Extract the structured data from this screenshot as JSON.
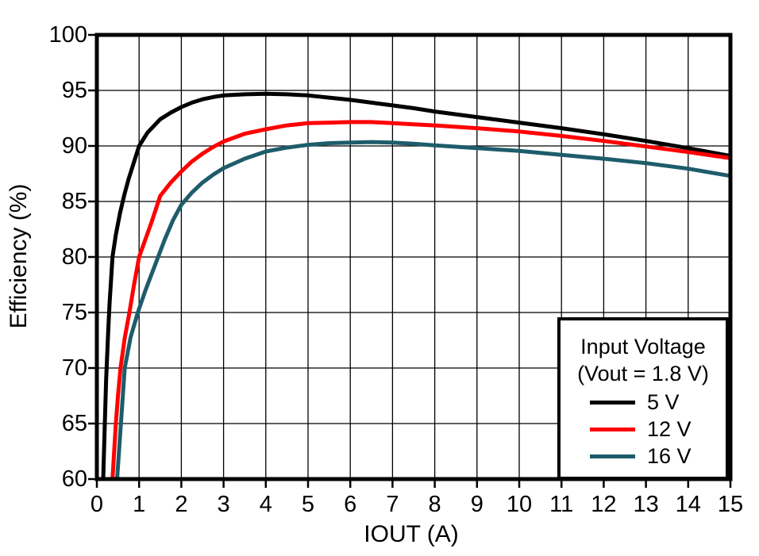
{
  "chart_data": {
    "type": "line",
    "title": "",
    "xlabel": "IOUT (A)",
    "ylabel": "Efficiency (%)",
    "xlim": [
      0,
      15
    ],
    "ylim": [
      60,
      100
    ],
    "xticks": [
      0,
      1,
      2,
      3,
      4,
      5,
      6,
      7,
      8,
      9,
      10,
      11,
      12,
      13,
      14,
      15
    ],
    "yticks": [
      60,
      65,
      70,
      75,
      80,
      85,
      90,
      95,
      100
    ],
    "grid": true,
    "colors": {
      "frame": "#000000",
      "grid": "#000000",
      "background": "#ffffff",
      "text": "#000000"
    },
    "legend": {
      "position": "bottom-right",
      "title_lines": [
        "Input Voltage",
        "(Vout = 1.8 V)"
      ]
    },
    "series": [
      {
        "name": "5 V",
        "color": "#000000",
        "points": [
          [
            0.15,
            60
          ],
          [
            0.18,
            64
          ],
          [
            0.22,
            69
          ],
          [
            0.27,
            73.5
          ],
          [
            0.3,
            75.8
          ],
          [
            0.37,
            80
          ],
          [
            0.45,
            82
          ],
          [
            0.55,
            84
          ],
          [
            0.65,
            85.6
          ],
          [
            0.75,
            87
          ],
          [
            0.85,
            88.2
          ],
          [
            1.0,
            90.0
          ],
          [
            1.2,
            91.2
          ],
          [
            1.5,
            92.4
          ],
          [
            1.75,
            93.0
          ],
          [
            2.0,
            93.5
          ],
          [
            2.25,
            93.9
          ],
          [
            2.5,
            94.2
          ],
          [
            2.75,
            94.4
          ],
          [
            3.0,
            94.55
          ],
          [
            3.5,
            94.65
          ],
          [
            4.0,
            94.7
          ],
          [
            4.5,
            94.65
          ],
          [
            5.0,
            94.55
          ],
          [
            5.5,
            94.35
          ],
          [
            6.0,
            94.15
          ],
          [
            6.5,
            93.9
          ],
          [
            7.0,
            93.65
          ],
          [
            7.5,
            93.4
          ],
          [
            8.0,
            93.1
          ],
          [
            9.0,
            92.6
          ],
          [
            10.0,
            92.1
          ],
          [
            11.0,
            91.6
          ],
          [
            12.0,
            91.05
          ],
          [
            13.0,
            90.45
          ],
          [
            14.0,
            89.8
          ],
          [
            15.0,
            89.1
          ]
        ]
      },
      {
        "name": "12 V",
        "color": "#ff0000",
        "points": [
          [
            0.37,
            60
          ],
          [
            0.41,
            62.5
          ],
          [
            0.45,
            65
          ],
          [
            0.5,
            67.5
          ],
          [
            0.56,
            70
          ],
          [
            0.66,
            72.7
          ],
          [
            0.77,
            75
          ],
          [
            0.88,
            77.5
          ],
          [
            1.0,
            80
          ],
          [
            1.16,
            81.7
          ],
          [
            1.3,
            83.2
          ],
          [
            1.5,
            85.5
          ],
          [
            1.75,
            86.7
          ],
          [
            2.0,
            87.7
          ],
          [
            2.25,
            88.6
          ],
          [
            2.5,
            89.3
          ],
          [
            2.75,
            89.9
          ],
          [
            3.0,
            90.4
          ],
          [
            3.5,
            91.1
          ],
          [
            4.0,
            91.5
          ],
          [
            4.5,
            91.85
          ],
          [
            5.0,
            92.05
          ],
          [
            5.5,
            92.1
          ],
          [
            6.0,
            92.15
          ],
          [
            6.5,
            92.15
          ],
          [
            7.0,
            92.05
          ],
          [
            7.5,
            91.95
          ],
          [
            8.0,
            91.85
          ],
          [
            9.0,
            91.6
          ],
          [
            10.0,
            91.3
          ],
          [
            11.0,
            90.9
          ],
          [
            12.0,
            90.45
          ],
          [
            13.0,
            89.95
          ],
          [
            14.0,
            89.45
          ],
          [
            15.0,
            88.9
          ]
        ]
      },
      {
        "name": "16 V",
        "color": "#1e5c6b",
        "points": [
          [
            0.48,
            60
          ],
          [
            0.57,
            65
          ],
          [
            0.66,
            70
          ],
          [
            0.8,
            72.8
          ],
          [
            0.97,
            75
          ],
          [
            1.15,
            77
          ],
          [
            1.37,
            79.2
          ],
          [
            1.6,
            81.5
          ],
          [
            1.8,
            83.3
          ],
          [
            2.0,
            84.7
          ],
          [
            2.25,
            85.8
          ],
          [
            2.5,
            86.7
          ],
          [
            2.75,
            87.4
          ],
          [
            3.0,
            88.0
          ],
          [
            3.5,
            88.85
          ],
          [
            4.0,
            89.5
          ],
          [
            4.5,
            89.85
          ],
          [
            5.0,
            90.1
          ],
          [
            5.5,
            90.25
          ],
          [
            6.0,
            90.3
          ],
          [
            6.5,
            90.35
          ],
          [
            7.0,
            90.3
          ],
          [
            7.5,
            90.2
          ],
          [
            8.0,
            90.05
          ],
          [
            9.0,
            89.8
          ],
          [
            10.0,
            89.55
          ],
          [
            11.0,
            89.2
          ],
          [
            12.0,
            88.85
          ],
          [
            13.0,
            88.45
          ],
          [
            14.0,
            87.95
          ],
          [
            15.0,
            87.3
          ]
        ]
      }
    ]
  }
}
